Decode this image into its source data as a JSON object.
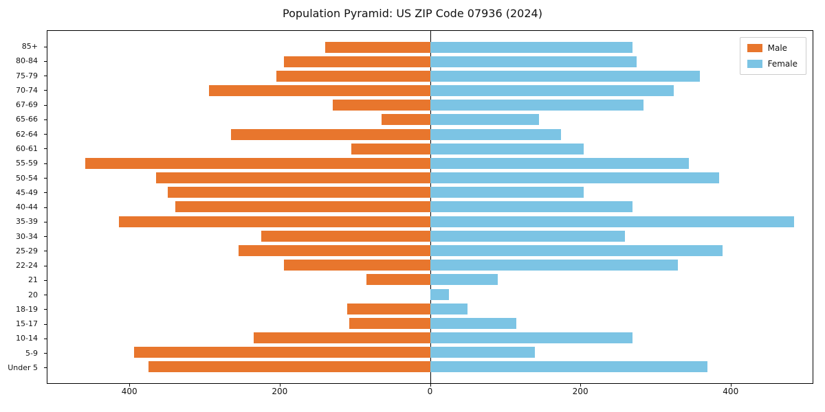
{
  "title": "Population Pyramid: US ZIP Code 07936 (2024)",
  "legend": {
    "male_label": "Male",
    "female_label": "Female"
  },
  "colors": {
    "male": "#E8762D",
    "female": "#7CC4E4",
    "axis": "#000000"
  },
  "chart_data": {
    "type": "bar",
    "orientation": "horizontal-pyramid",
    "title": "Population Pyramid: US ZIP Code 07936 (2024)",
    "xlabel": "",
    "ylabel": "",
    "legend_position": "upper-right",
    "grid": false,
    "xlim": [
      -510,
      510
    ],
    "xticks": [
      -400,
      -200,
      0,
      200,
      400
    ],
    "xtick_labels": [
      "400",
      "200",
      "0",
      "200",
      "400"
    ],
    "categories": [
      "85+",
      "80-84",
      "75-79",
      "70-74",
      "67-69",
      "65-66",
      "62-64",
      "60-61",
      "55-59",
      "50-54",
      "45-49",
      "40-44",
      "35-39",
      "30-34",
      "25-29",
      "22-24",
      "21",
      "20",
      "18-19",
      "15-17",
      "10-14",
      "5-9",
      "Under 5"
    ],
    "series": [
      {
        "name": "Male",
        "values": [
          140,
          195,
          205,
          295,
          130,
          65,
          265,
          105,
          460,
          365,
          350,
          340,
          415,
          225,
          255,
          195,
          85,
          0,
          110,
          108,
          235,
          395,
          375
        ]
      },
      {
        "name": "Female",
        "values": [
          270,
          275,
          360,
          325,
          285,
          145,
          175,
          205,
          345,
          385,
          205,
          270,
          485,
          260,
          390,
          330,
          90,
          25,
          50,
          115,
          270,
          140,
          370
        ]
      }
    ]
  }
}
